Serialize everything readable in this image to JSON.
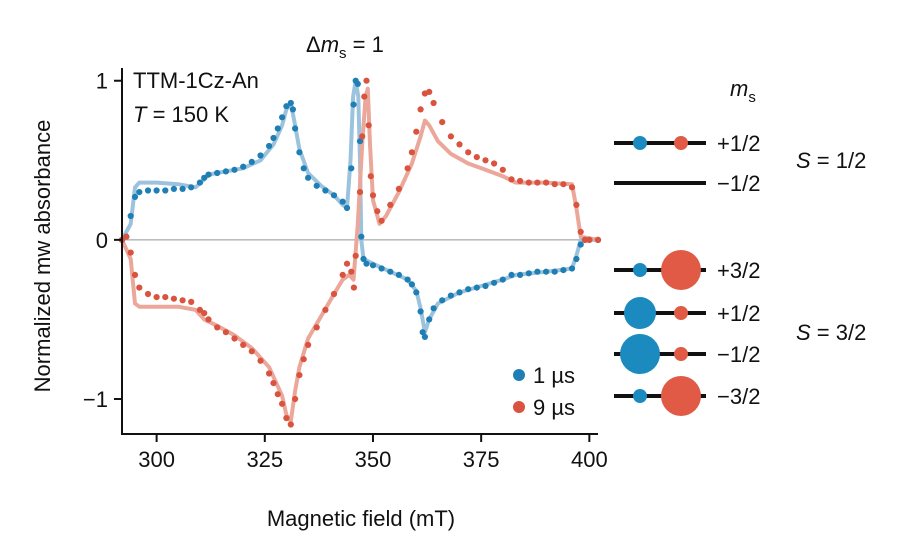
{
  "chart_data": {
    "type": "scatter",
    "xlabel": "Magnetic field (mT)",
    "ylabel": "Normalized mw absorbance",
    "xlim": [
      292,
      402
    ],
    "ylim": [
      -1.22,
      1.08
    ],
    "xticks": [
      300,
      325,
      350,
      375,
      400
    ],
    "yticks": [
      {
        "value": -1,
        "label": "−1"
      },
      {
        "value": 0,
        "label": "0"
      },
      {
        "value": 1,
        "label": "1"
      }
    ],
    "zero_line": true,
    "annotations": {
      "sample": "TTM-1Cz-An",
      "temp_var": "T",
      "temp_value": " = 150 K",
      "transition_prefix": "Δ",
      "transition_var": "m",
      "transition_sub": "s",
      "transition_value": " = 1"
    },
    "legend": {
      "position": "bottom-right"
    },
    "series": [
      {
        "name": "1 µs",
        "color": "#1f7fb4",
        "fit_color": "#9cc3de",
        "points": [
          [
            292,
            0.0
          ],
          [
            293,
            0.02
          ],
          [
            294,
            0.15
          ],
          [
            295,
            0.27
          ],
          [
            296,
            0.3
          ],
          [
            298,
            0.31
          ],
          [
            300,
            0.31
          ],
          [
            302,
            0.31
          ],
          [
            304,
            0.32
          ],
          [
            306,
            0.32
          ],
          [
            308,
            0.33
          ],
          [
            310,
            0.36
          ],
          [
            311,
            0.39
          ],
          [
            312,
            0.41
          ],
          [
            314,
            0.42
          ],
          [
            316,
            0.43
          ],
          [
            318,
            0.44
          ],
          [
            320,
            0.46
          ],
          [
            322,
            0.49
          ],
          [
            324,
            0.53
          ],
          [
            326,
            0.59
          ],
          [
            327,
            0.64
          ],
          [
            328,
            0.7
          ],
          [
            329,
            0.77
          ],
          [
            330,
            0.84
          ],
          [
            331,
            0.86
          ],
          [
            331.5,
            0.82
          ],
          [
            332,
            0.7
          ],
          [
            333,
            0.55
          ],
          [
            334,
            0.45
          ],
          [
            335,
            0.39
          ],
          [
            337,
            0.34
          ],
          [
            339,
            0.31
          ],
          [
            341,
            0.28
          ],
          [
            343,
            0.24
          ],
          [
            344,
            0.2
          ],
          [
            345,
            0.45
          ],
          [
            345.5,
            0.85
          ],
          [
            346,
            1.0
          ],
          [
            346.5,
            0.98
          ],
          [
            347,
            0.62
          ],
          [
            347.3,
            0.02
          ],
          [
            347.8,
            -0.12
          ],
          [
            348.5,
            -0.15
          ],
          [
            350,
            -0.16
          ],
          [
            352,
            -0.18
          ],
          [
            354,
            -0.2
          ],
          [
            356,
            -0.22
          ],
          [
            358,
            -0.25
          ],
          [
            359,
            -0.28
          ],
          [
            360,
            -0.33
          ],
          [
            361,
            -0.45
          ],
          [
            361.5,
            -0.58
          ],
          [
            362,
            -0.61
          ],
          [
            363,
            -0.5
          ],
          [
            364,
            -0.43
          ],
          [
            366,
            -0.38
          ],
          [
            368,
            -0.35
          ],
          [
            370,
            -0.33
          ],
          [
            372,
            -0.31
          ],
          [
            374,
            -0.3
          ],
          [
            376,
            -0.29
          ],
          [
            378,
            -0.27
          ],
          [
            380,
            -0.25
          ],
          [
            382,
            -0.22
          ],
          [
            384,
            -0.22
          ],
          [
            386,
            -0.21
          ],
          [
            388,
            -0.2
          ],
          [
            390,
            -0.2
          ],
          [
            392,
            -0.2
          ],
          [
            394,
            -0.19
          ],
          [
            396,
            -0.18
          ],
          [
            397,
            -0.12
          ],
          [
            398,
            -0.03
          ],
          [
            399,
            0.0
          ],
          [
            400,
            0.0
          ],
          [
            402,
            0.0
          ]
        ],
        "fit": [
          [
            292,
            0.0
          ],
          [
            294,
            0.1
          ],
          [
            295,
            0.33
          ],
          [
            296,
            0.36
          ],
          [
            300,
            0.36
          ],
          [
            305,
            0.35
          ],
          [
            309,
            0.33
          ],
          [
            311,
            0.38
          ],
          [
            312,
            0.41
          ],
          [
            316,
            0.43
          ],
          [
            320,
            0.45
          ],
          [
            324,
            0.5
          ],
          [
            327,
            0.6
          ],
          [
            329,
            0.72
          ],
          [
            330,
            0.82
          ],
          [
            331,
            0.86
          ],
          [
            332,
            0.72
          ],
          [
            333,
            0.57
          ],
          [
            335,
            0.42
          ],
          [
            338,
            0.34
          ],
          [
            341,
            0.28
          ],
          [
            343,
            0.22
          ],
          [
            344,
            0.2
          ],
          [
            344.8,
            0.5
          ],
          [
            345.4,
            0.9
          ],
          [
            346,
            1.0
          ],
          [
            346.6,
            0.9
          ],
          [
            347,
            0.5
          ],
          [
            347.3,
            0.0
          ],
          [
            347.8,
            -0.12
          ],
          [
            350,
            -0.15
          ],
          [
            354,
            -0.2
          ],
          [
            358,
            -0.25
          ],
          [
            360,
            -0.32
          ],
          [
            361,
            -0.43
          ],
          [
            362,
            -0.58
          ],
          [
            363,
            -0.5
          ],
          [
            365,
            -0.4
          ],
          [
            370,
            -0.33
          ],
          [
            375,
            -0.29
          ],
          [
            380,
            -0.25
          ],
          [
            383,
            -0.22
          ],
          [
            390,
            -0.2
          ],
          [
            396,
            -0.18
          ],
          [
            397,
            -0.1
          ],
          [
            398,
            0.0
          ],
          [
            402,
            0.0
          ]
        ]
      },
      {
        "name": "9 µs",
        "color": "#d9533f",
        "fit_color": "#eba79a",
        "points": [
          [
            292,
            0.0
          ],
          [
            293,
            0.02
          ],
          [
            294,
            -0.08
          ],
          [
            295,
            -0.22
          ],
          [
            296,
            -0.3
          ],
          [
            298,
            -0.34
          ],
          [
            300,
            -0.36
          ],
          [
            302,
            -0.36
          ],
          [
            304,
            -0.37
          ],
          [
            306,
            -0.38
          ],
          [
            308,
            -0.39
          ],
          [
            310,
            -0.44
          ],
          [
            311,
            -0.46
          ],
          [
            312,
            -0.5
          ],
          [
            314,
            -0.55
          ],
          [
            316,
            -0.58
          ],
          [
            318,
            -0.62
          ],
          [
            320,
            -0.66
          ],
          [
            322,
            -0.7
          ],
          [
            324,
            -0.76
          ],
          [
            326,
            -0.84
          ],
          [
            327,
            -0.9
          ],
          [
            328,
            -0.97
          ],
          [
            329,
            -1.03
          ],
          [
            330,
            -1.12
          ],
          [
            331,
            -1.16
          ],
          [
            332,
            -1.0
          ],
          [
            333,
            -0.85
          ],
          [
            334,
            -0.75
          ],
          [
            335,
            -0.66
          ],
          [
            337,
            -0.55
          ],
          [
            339,
            -0.44
          ],
          [
            341,
            -0.34
          ],
          [
            343,
            -0.22
          ],
          [
            344,
            -0.15
          ],
          [
            345,
            -0.2
          ],
          [
            345.6,
            -0.3
          ],
          [
            346,
            -0.1
          ],
          [
            347,
            0.3
          ],
          [
            347.5,
            0.65
          ],
          [
            348,
            0.9
          ],
          [
            348.5,
            1.0
          ],
          [
            349,
            0.72
          ],
          [
            349.5,
            0.4
          ],
          [
            350,
            0.28
          ],
          [
            351,
            0.18
          ],
          [
            352,
            0.12
          ],
          [
            354,
            0.22
          ],
          [
            356,
            0.32
          ],
          [
            358,
            0.45
          ],
          [
            359,
            0.55
          ],
          [
            360,
            0.68
          ],
          [
            361,
            0.82
          ],
          [
            362,
            0.92
          ],
          [
            363,
            0.93
          ],
          [
            364,
            0.86
          ],
          [
            366,
            0.74
          ],
          [
            368,
            0.65
          ],
          [
            370,
            0.6
          ],
          [
            372,
            0.55
          ],
          [
            374,
            0.52
          ],
          [
            376,
            0.5
          ],
          [
            378,
            0.48
          ],
          [
            380,
            0.44
          ],
          [
            382,
            0.38
          ],
          [
            384,
            0.37
          ],
          [
            386,
            0.36
          ],
          [
            388,
            0.36
          ],
          [
            390,
            0.36
          ],
          [
            392,
            0.35
          ],
          [
            394,
            0.35
          ],
          [
            396,
            0.33
          ],
          [
            397,
            0.22
          ],
          [
            398,
            0.05
          ],
          [
            399,
            0.0
          ],
          [
            400,
            0.0
          ],
          [
            402,
            0.0
          ]
        ],
        "fit": [
          [
            292,
            0.0
          ],
          [
            294,
            -0.12
          ],
          [
            295,
            -0.4
          ],
          [
            296,
            -0.42
          ],
          [
            300,
            -0.42
          ],
          [
            305,
            -0.42
          ],
          [
            309,
            -0.44
          ],
          [
            311,
            -0.5
          ],
          [
            314,
            -0.54
          ],
          [
            318,
            -0.6
          ],
          [
            322,
            -0.68
          ],
          [
            326,
            -0.8
          ],
          [
            329,
            -0.98
          ],
          [
            330,
            -1.1
          ],
          [
            331,
            -1.14
          ],
          [
            332,
            -0.95
          ],
          [
            333,
            -0.8
          ],
          [
            335,
            -0.62
          ],
          [
            338,
            -0.48
          ],
          [
            341,
            -0.34
          ],
          [
            343,
            -0.25
          ],
          [
            344.5,
            -0.22
          ],
          [
            345.5,
            -0.25
          ],
          [
            346.5,
            0.1
          ],
          [
            347.5,
            0.6
          ],
          [
            348.3,
            0.9
          ],
          [
            348.8,
            0.95
          ],
          [
            349.3,
            0.6
          ],
          [
            350,
            0.25
          ],
          [
            351.5,
            0.1
          ],
          [
            353,
            0.15
          ],
          [
            356,
            0.3
          ],
          [
            359,
            0.48
          ],
          [
            361,
            0.65
          ],
          [
            362,
            0.75
          ],
          [
            363,
            0.72
          ],
          [
            365,
            0.62
          ],
          [
            368,
            0.54
          ],
          [
            372,
            0.48
          ],
          [
            376,
            0.44
          ],
          [
            380,
            0.4
          ],
          [
            383,
            0.36
          ],
          [
            390,
            0.36
          ],
          [
            396,
            0.35
          ],
          [
            397,
            0.2
          ],
          [
            398,
            0.02
          ],
          [
            402,
            0.0
          ]
        ]
      }
    ]
  },
  "energy_levels": {
    "header_var": "m",
    "header_sub": "s",
    "dot_colors": {
      "left": "#1a8abf",
      "right": "#e05a45"
    },
    "groups": [
      {
        "label_var": "S",
        "label_value": " = 1/2",
        "levels": [
          {
            "label": "+1/2",
            "left_pop": 0.35,
            "right_pop": 0.35
          },
          {
            "label": "−1/2",
            "left_pop": 0,
            "right_pop": 0
          }
        ]
      },
      {
        "label_var": "S",
        "label_value": " = 3/2",
        "levels": [
          {
            "label": "+3/2",
            "left_pop": 0.35,
            "right_pop": 1.0
          },
          {
            "label": "+1/2",
            "left_pop": 0.8,
            "right_pop": 0.35
          },
          {
            "label": "−1/2",
            "left_pop": 1.0,
            "right_pop": 0.35
          },
          {
            "label": "−3/2",
            "left_pop": 0.35,
            "right_pop": 1.0
          }
        ]
      }
    ]
  }
}
